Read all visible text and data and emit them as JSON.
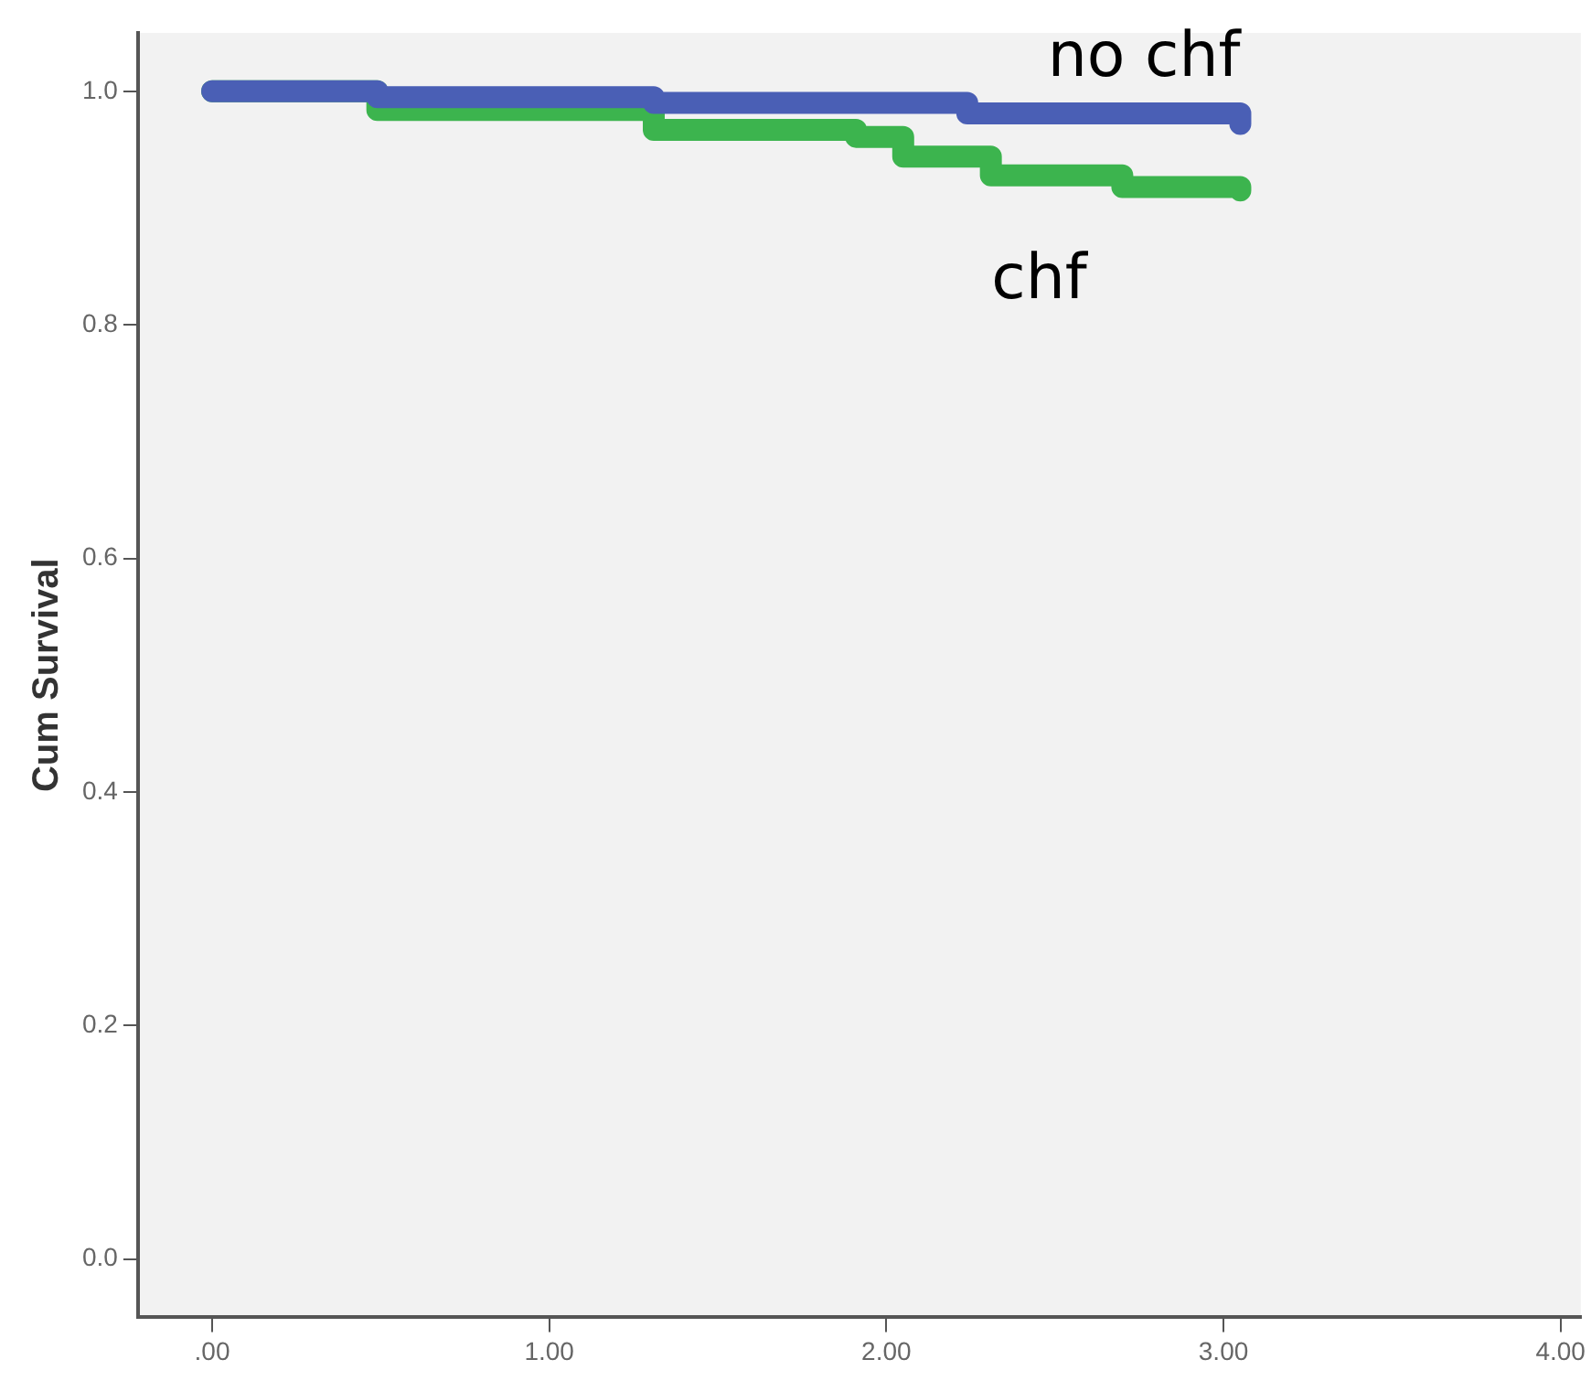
{
  "chart_data": {
    "type": "step",
    "ylabel": "Cum Survival",
    "series": [
      {
        "name": "no chf",
        "color": "#4a5fb5",
        "x": [
          0,
          0.49,
          1.31,
          2.24,
          3.05
        ],
        "values": [
          1.0,
          0.995,
          0.99,
          0.981,
          0.972
        ]
      },
      {
        "name": "chf",
        "color": "#3cb44e",
        "x": [
          0,
          0.49,
          1.31,
          1.91,
          2.05,
          2.31,
          2.7,
          3.05
        ],
        "values": [
          1.0,
          0.984,
          0.967,
          0.961,
          0.944,
          0.928,
          0.918,
          0.915
        ]
      }
    ],
    "xlim": [
      -0.22,
      4.06
    ],
    "ylim": [
      -0.05,
      1.05
    ],
    "xticks": [
      {
        "value": 0,
        "label": ".00"
      },
      {
        "value": 1,
        "label": "1.00"
      },
      {
        "value": 2,
        "label": "2.00"
      },
      {
        "value": 3,
        "label": "3.00"
      },
      {
        "value": 4,
        "label": "4.00"
      }
    ],
    "yticks": [
      {
        "value": 0,
        "label": "0.0"
      },
      {
        "value": 0.2,
        "label": "0.2"
      },
      {
        "value": 0.4,
        "label": "0.4"
      },
      {
        "value": 0.6,
        "label": "0.6"
      },
      {
        "value": 0.8,
        "label": "0.8"
      },
      {
        "value": 1,
        "label": "1.0"
      }
    ],
    "grid": false,
    "legend": false,
    "marker": "none",
    "line_style": "solid"
  }
}
